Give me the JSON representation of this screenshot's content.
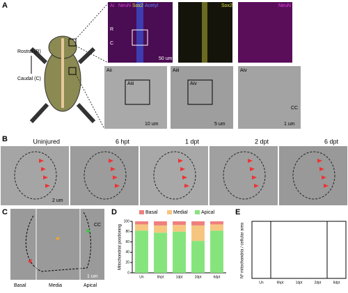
{
  "figure": {
    "panel_a": {
      "letter": "A",
      "rostral": "Rostral (R)",
      "caudal": "Caudal (C)",
      "ai": {
        "label": "Ai",
        "ch1": "NeuN",
        "ch2": "Sox2",
        "ch3": "Acetyl",
        "r": "R",
        "c": "C",
        "scale": "50 um"
      },
      "ai_sox2": "Sox2",
      "ai_neun": "NeuN",
      "aii": {
        "label": "Aii",
        "inset": "Aiii",
        "scale": "10 um"
      },
      "aiii": {
        "label": "Aiii",
        "inset": "Aiv",
        "scale": "5 um"
      },
      "aiv": {
        "label": "Aiv",
        "cc": "CC",
        "scale": "1 um"
      }
    },
    "panel_b": {
      "letter": "B",
      "titles": [
        "Uninjured",
        "6 hpt",
        "1 dpt",
        "2 dpt",
        "6 dpt"
      ],
      "scale": "2 um"
    },
    "panel_c": {
      "letter": "C",
      "regions": [
        "Basal",
        "Media",
        "Apical"
      ],
      "cc": "CC",
      "scale": "1 um"
    },
    "panel_d": {
      "letter": "D"
    },
    "panel_e": {
      "letter": "E",
      "ylabel": "Nº mitochondria / cellular area",
      "categories": [
        "Un",
        "6hpt",
        "1dpt",
        "2dpt",
        "6dpt"
      ]
    }
  },
  "chart_data": [
    {
      "type": "bar",
      "stacked": true,
      "ylabel": "Mitochondrial positioning",
      "categories": [
        "Un",
        "6hpt",
        "1dpt",
        "2dpt",
        "6dpt"
      ],
      "series": [
        {
          "name": "Basal",
          "color": "#ef7f7f",
          "values": [
            6,
            8,
            7,
            8,
            6
          ]
        },
        {
          "name": "Medial",
          "color": "#f6c680",
          "values": [
            12,
            14,
            13,
            30,
            12
          ]
        },
        {
          "name": "Apical",
          "color": "#86e47c",
          "values": [
            82,
            78,
            80,
            62,
            82
          ]
        }
      ],
      "ylim": [
        0,
        100
      ],
      "yticks": [
        0,
        20,
        40,
        60,
        80,
        100
      ]
    }
  ]
}
